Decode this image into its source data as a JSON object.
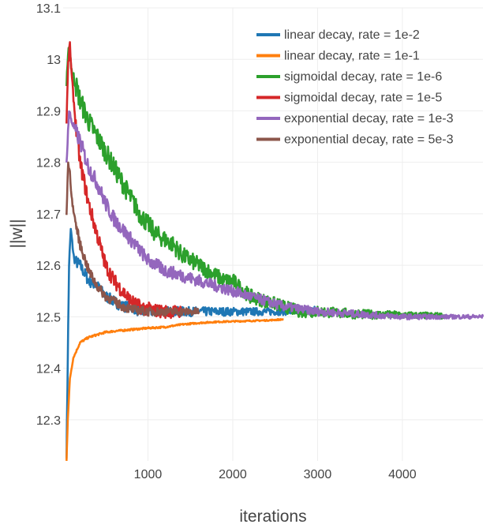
{
  "chart_data": {
    "type": "line",
    "title": "",
    "xlabel": "iterations",
    "ylabel": "||w||",
    "xlim": [
      0,
      4950
    ],
    "ylim": [
      12.22,
      13.1
    ],
    "x_ticks": [
      1000,
      2000,
      3000,
      4000
    ],
    "x_tick_labels": [
      "1000",
      "2000",
      "3000",
      "4000"
    ],
    "y_ticks": [
      12.3,
      12.4,
      12.5,
      12.6,
      12.7,
      12.8,
      12.9,
      13.0,
      13.1
    ],
    "y_tick_labels": [
      "12.3",
      "12.4",
      "12.5",
      "12.6",
      "12.7",
      "12.8",
      "12.9",
      "13",
      "13.1"
    ],
    "grid": true,
    "legend_position": "top-right",
    "series": [
      {
        "name": "linear decay, rate = 1e-2",
        "color": "#1f77b4",
        "noise": 0.012,
        "points": [
          [
            40,
            12.23
          ],
          [
            55,
            12.42
          ],
          [
            70,
            12.6
          ],
          [
            90,
            12.67
          ],
          [
            130,
            12.61
          ],
          [
            200,
            12.6
          ],
          [
            300,
            12.57
          ],
          [
            400,
            12.56
          ],
          [
            500,
            12.54
          ],
          [
            600,
            12.53
          ],
          [
            700,
            12.52
          ],
          [
            800,
            12.52
          ],
          [
            900,
            12.51
          ],
          [
            1000,
            12.51
          ],
          [
            1200,
            12.51
          ],
          [
            1400,
            12.51
          ],
          [
            1600,
            12.51
          ],
          [
            1800,
            12.51
          ],
          [
            2000,
            12.51
          ],
          [
            2200,
            12.51
          ],
          [
            2400,
            12.51
          ],
          [
            2600,
            12.51
          ],
          [
            2800,
            12.51
          ],
          [
            3000,
            12.515
          ]
        ]
      },
      {
        "name": "linear decay, rate = 1e-1",
        "color": "#ff7f0e",
        "noise": 0.002,
        "points": [
          [
            40,
            12.22
          ],
          [
            55,
            12.3
          ],
          [
            80,
            12.38
          ],
          [
            120,
            12.42
          ],
          [
            200,
            12.45
          ],
          [
            300,
            12.46
          ],
          [
            400,
            12.465
          ],
          [
            500,
            12.47
          ],
          [
            600,
            12.472
          ],
          [
            800,
            12.475
          ],
          [
            1000,
            12.478
          ],
          [
            1200,
            12.48
          ],
          [
            1400,
            12.485
          ],
          [
            1600,
            12.488
          ],
          [
            1800,
            12.49
          ],
          [
            2000,
            12.491
          ],
          [
            2200,
            12.492
          ],
          [
            2400,
            12.493
          ],
          [
            2600,
            12.495
          ]
        ]
      },
      {
        "name": "sigmoidal decay, rate = 1e-6",
        "color": "#2ca02c",
        "noise": 0.022,
        "points": [
          [
            40,
            12.95
          ],
          [
            70,
            13.03
          ],
          [
            100,
            12.98
          ],
          [
            200,
            12.92
          ],
          [
            300,
            12.88
          ],
          [
            400,
            12.85
          ],
          [
            500,
            12.82
          ],
          [
            600,
            12.79
          ],
          [
            700,
            12.76
          ],
          [
            800,
            12.73
          ],
          [
            900,
            12.7
          ],
          [
            1000,
            12.68
          ],
          [
            1100,
            12.66
          ],
          [
            1200,
            12.65
          ],
          [
            1300,
            12.64
          ],
          [
            1400,
            12.62
          ],
          [
            1500,
            12.61
          ],
          [
            1600,
            12.6
          ],
          [
            1700,
            12.59
          ],
          [
            1800,
            12.58
          ],
          [
            1900,
            12.57
          ],
          [
            2000,
            12.57
          ],
          [
            2200,
            12.54
          ],
          [
            2400,
            12.53
          ],
          [
            2600,
            12.52
          ],
          [
            2800,
            12.51
          ],
          [
            3000,
            12.51
          ],
          [
            3500,
            12.505
          ],
          [
            4000,
            12.503
          ],
          [
            4500,
            12.502
          ]
        ]
      },
      {
        "name": "sigmoidal decay, rate = 1e-5",
        "color": "#d62728",
        "noise": 0.016,
        "points": [
          [
            40,
            12.88
          ],
          [
            60,
            12.99
          ],
          [
            80,
            13.03
          ],
          [
            100,
            12.97
          ],
          [
            150,
            12.87
          ],
          [
            200,
            12.8
          ],
          [
            300,
            12.72
          ],
          [
            400,
            12.66
          ],
          [
            500,
            12.6
          ],
          [
            600,
            12.57
          ],
          [
            700,
            12.55
          ],
          [
            800,
            12.53
          ],
          [
            900,
            12.52
          ],
          [
            1000,
            12.515
          ],
          [
            1100,
            12.512
          ],
          [
            1200,
            12.51
          ],
          [
            1300,
            12.51
          ],
          [
            1400,
            12.51
          ]
        ]
      },
      {
        "name": "exponential decay, rate = 1e-3",
        "color": "#9467bd",
        "noise": 0.016,
        "points": [
          [
            40,
            12.8
          ],
          [
            70,
            12.9
          ],
          [
            100,
            12.88
          ],
          [
            200,
            12.84
          ],
          [
            300,
            12.79
          ],
          [
            400,
            12.76
          ],
          [
            500,
            12.72
          ],
          [
            600,
            12.69
          ],
          [
            700,
            12.67
          ],
          [
            800,
            12.65
          ],
          [
            900,
            12.63
          ],
          [
            1000,
            12.61
          ],
          [
            1200,
            12.59
          ],
          [
            1400,
            12.58
          ],
          [
            1600,
            12.57
          ],
          [
            1800,
            12.56
          ],
          [
            2000,
            12.55
          ],
          [
            2200,
            12.54
          ],
          [
            2400,
            12.53
          ],
          [
            2600,
            12.52
          ],
          [
            2800,
            12.515
          ],
          [
            3000,
            12.51
          ],
          [
            3500,
            12.505
          ],
          [
            4000,
            12.5
          ],
          [
            4500,
            12.5
          ],
          [
            4950,
            12.5
          ]
        ]
      },
      {
        "name": "exponential decay, rate = 5e-3",
        "color": "#8c564b",
        "noise": 0.01,
        "points": [
          [
            40,
            12.7
          ],
          [
            60,
            12.8
          ],
          [
            80,
            12.78
          ],
          [
            100,
            12.73
          ],
          [
            150,
            12.68
          ],
          [
            200,
            12.64
          ],
          [
            300,
            12.59
          ],
          [
            400,
            12.56
          ],
          [
            500,
            12.54
          ],
          [
            600,
            12.53
          ],
          [
            700,
            12.52
          ],
          [
            800,
            12.515
          ],
          [
            900,
            12.512
          ],
          [
            1000,
            12.51
          ],
          [
            1200,
            12.51
          ],
          [
            1400,
            12.51
          ],
          [
            1600,
            12.51
          ]
        ]
      }
    ]
  }
}
